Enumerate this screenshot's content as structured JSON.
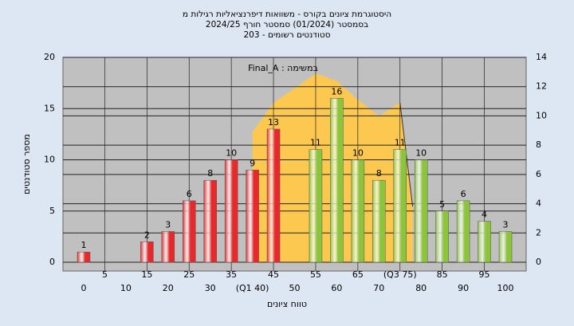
{
  "chart_data": {
    "type": "bar",
    "title": "היסטוגרמת ציונים בקורס - משוואות דיפרנציאליות רגילות מ",
    "subtitle": "בסמסטר  (01/2024)  סמסטר חורף 2024/25",
    "subtitle2": "סטודנטים רשומים - 203",
    "annotation": "Final_A : במשימה",
    "ylabel": "מספר סטודנטים",
    "xlabel": "טווח ציונים",
    "categories": [
      "0",
      "5",
      "10",
      "15",
      "20",
      "25",
      "30",
      "35",
      "(Q1 40)",
      "45",
      "50",
      "55",
      "60",
      "65",
      "70",
      "(Q3 75)",
      "80",
      "85",
      "90",
      "95",
      "100"
    ],
    "values": [
      1,
      null,
      null,
      2,
      3,
      6,
      8,
      10,
      9,
      13,
      null,
      11,
      16,
      10,
      8,
      11,
      10,
      5,
      6,
      4,
      3
    ],
    "colors": [
      "#e8292c",
      "#e8292c",
      "#e8292c",
      "#e8292c",
      "#e8292c",
      "#e8292c",
      "#e8292c",
      "#e8292c",
      "#e8292c",
      "#e8292c",
      "#e8292c",
      "#8cc43c",
      "#8cc43c",
      "#8cc43c",
      "#8cc43c",
      "#8cc43c",
      "#8cc43c",
      "#8cc43c",
      "#8cc43c",
      "#8cc43c",
      "#8cc43c"
    ],
    "ylim": [
      0,
      20
    ],
    "yticks": [
      0,
      5,
      10,
      15,
      20
    ],
    "y2lim": [
      0,
      14
    ],
    "y2ticks": [
      0,
      2,
      4,
      6,
      8,
      10,
      12,
      14
    ],
    "xlim": [
      0,
      100
    ],
    "area": {
      "axis": "y2",
      "color": "#fdc850",
      "x": [
        40,
        45,
        55,
        60,
        65,
        70,
        75,
        78
      ],
      "values": [
        8.9,
        10.9,
        12.9,
        12.4,
        11.1,
        10.0,
        10.9,
        3.8
      ]
    },
    "grid": true
  }
}
